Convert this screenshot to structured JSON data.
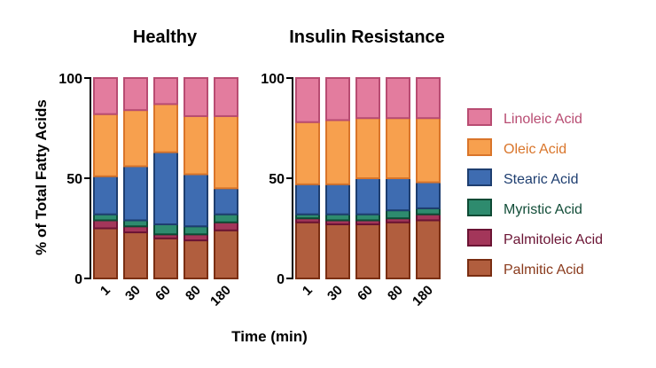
{
  "chart_data": {
    "type": "bar",
    "stacked": true,
    "ylabel": "% of Total Fatty Acids",
    "xlabel": "Time (min)",
    "ylim": [
      0,
      100
    ],
    "yticks": [
      "0",
      "50",
      "100"
    ],
    "legend_position": "right",
    "grid": false,
    "series_meta": [
      {
        "name": "Palmitic Acid",
        "fill": "#B15E3E",
        "stroke": "#7A2E12",
        "text_color": "#8A3A1C"
      },
      {
        "name": "Palmitoleic Acid",
        "fill": "#A3365A",
        "stroke": "#6B1434",
        "text_color": "#6B1434"
      },
      {
        "name": "Myristic Acid",
        "fill": "#2E8B6E",
        "stroke": "#0E4A34",
        "text_color": "#124D38"
      },
      {
        "name": "Stearic Acid",
        "fill": "#3E6CB1",
        "stroke": "#1E3E70",
        "text_color": "#1E3E70"
      },
      {
        "name": "Oleic Acid",
        "fill": "#F7A04E",
        "stroke": "#D9752A",
        "text_color": "#D9752A"
      },
      {
        "name": "Linoleic Acid",
        "fill": "#E37C9E",
        "stroke": "#B84C72",
        "text_color": "#B84C72"
      }
    ],
    "legend_order": [
      5,
      4,
      3,
      2,
      1,
      0
    ],
    "panels": [
      {
        "title": "Healthy",
        "categories": [
          "1",
          "30",
          "60",
          "80",
          "180"
        ],
        "series": [
          {
            "name": "Palmitic Acid",
            "values": [
              25,
              23,
              20,
              19,
              24
            ]
          },
          {
            "name": "Palmitoleic Acid",
            "values": [
              4,
              3,
              2,
              3,
              4
            ]
          },
          {
            "name": "Myristic Acid",
            "values": [
              3,
              3,
              5,
              4,
              4
            ]
          },
          {
            "name": "Stearic Acid",
            "values": [
              19,
              27,
              36,
              26,
              13
            ]
          },
          {
            "name": "Oleic Acid",
            "values": [
              31,
              28,
              24,
              29,
              36
            ]
          },
          {
            "name": "Linoleic Acid",
            "values": [
              18,
              16,
              13,
              19,
              19
            ]
          }
        ]
      },
      {
        "title": "Insulin Resistance",
        "categories": [
          "1",
          "30",
          "60",
          "80",
          "180"
        ],
        "series": [
          {
            "name": "Palmitic Acid",
            "values": [
              28,
              27,
              27,
              28,
              29
            ]
          },
          {
            "name": "Palmitoleic Acid",
            "values": [
              2,
              2,
              2,
              2,
              3
            ]
          },
          {
            "name": "Myristic Acid",
            "values": [
              2,
              3,
              3,
              4,
              3
            ]
          },
          {
            "name": "Stearic Acid",
            "values": [
              15,
              15,
              18,
              16,
              13
            ]
          },
          {
            "name": "Oleic Acid",
            "values": [
              31,
              32,
              30,
              30,
              32
            ]
          },
          {
            "name": "Linoleic Acid",
            "values": [
              22,
              21,
              20,
              20,
              20
            ]
          }
        ]
      }
    ]
  }
}
